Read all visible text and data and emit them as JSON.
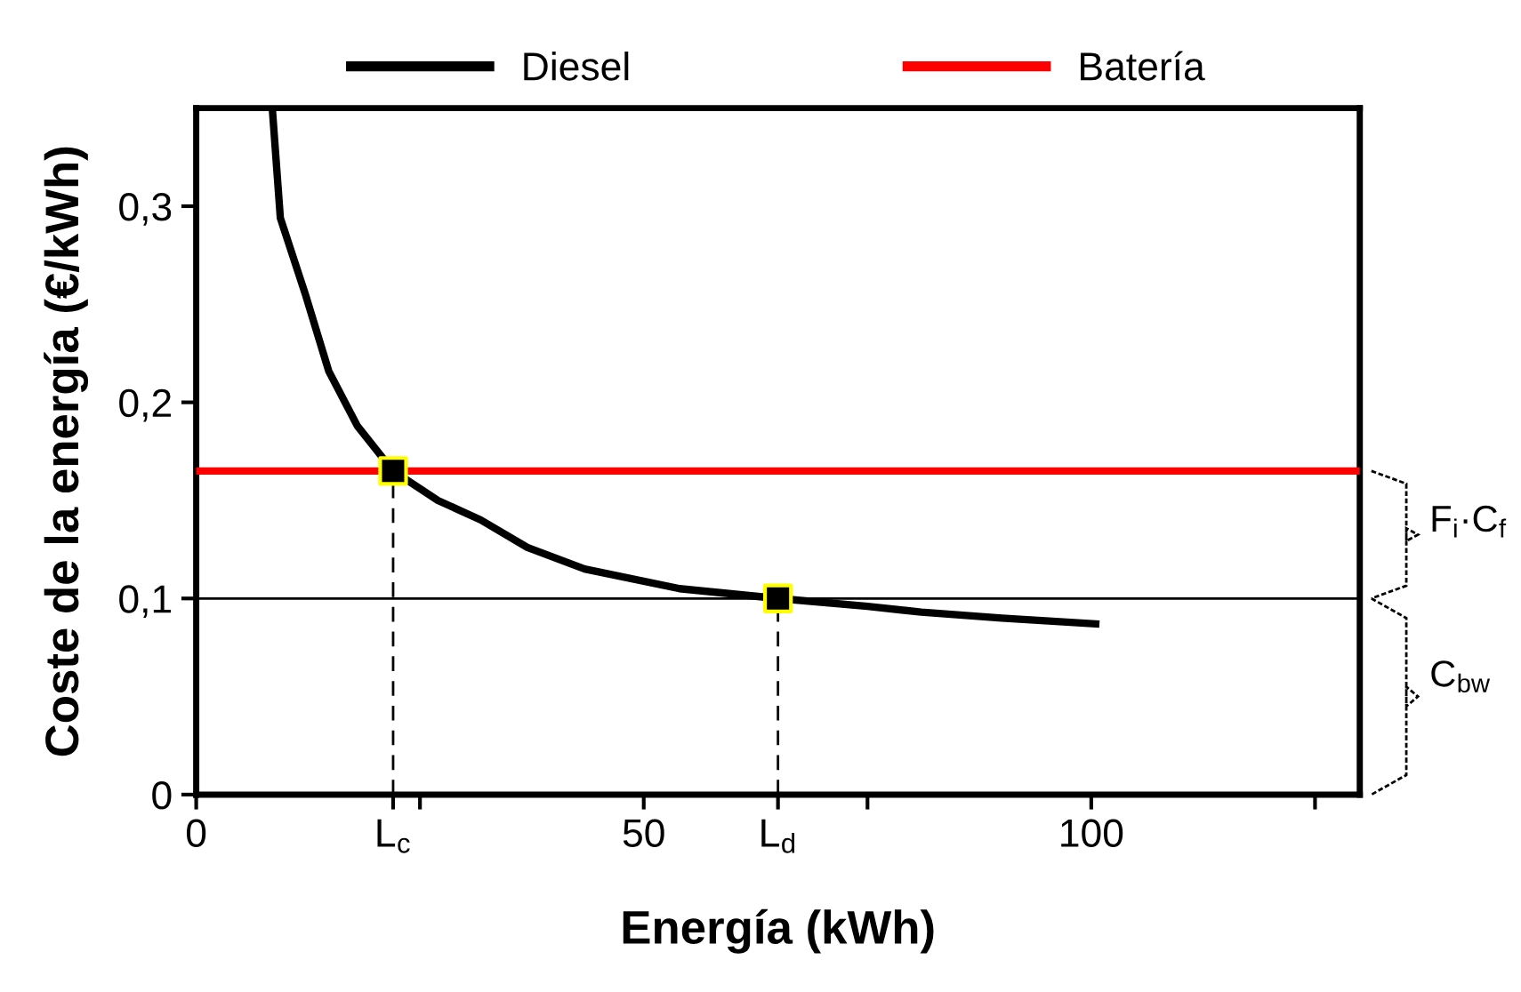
{
  "chart_data": {
    "type": "line",
    "xlabel": "Energía (kWh)",
    "ylabel": "Coste de la energía (€/kWh)",
    "xlim": [
      0,
      130
    ],
    "ylim": [
      0,
      0.35
    ],
    "xticks": [
      0,
      {
        "value": 22,
        "label": "L$_{c}$"
      },
      {
        "value": 25,
        "label": null
      },
      50,
      {
        "value": 65,
        "label": "L$_{d}$"
      },
      {
        "value": 75,
        "label": null
      },
      100,
      {
        "value": 125,
        "label": null
      }
    ],
    "yticks": [
      {
        "value": 0,
        "label": "0"
      },
      {
        "value": 0.1,
        "label": "0,1"
      },
      {
        "value": 0.2,
        "label": "0,2"
      },
      {
        "value": 0.3,
        "label": "0,3"
      }
    ],
    "grid": false,
    "legend": "top",
    "series": [
      {
        "name": "Diesel",
        "color": "#000000",
        "x": [
          8.5,
          9.4,
          12.2,
          14.8,
          18,
          22,
          27,
          31.8,
          37,
          43.4,
          54,
          65,
          75,
          81,
          90,
          100.5
        ],
        "values": [
          0.35,
          0.294,
          0.255,
          0.216,
          0.188,
          0.165,
          0.15,
          0.14,
          0.126,
          0.115,
          0.105,
          0.1,
          0.096,
          0.093,
          0.09,
          0.087
        ]
      },
      {
        "name": "Batería",
        "color": "#ff0000",
        "x": [
          0,
          130
        ],
        "values": [
          0.165,
          0.165
        ]
      },
      {
        "type": "line",
        "color": "#000000",
        "line_style": "dashed",
        "x": [
          22,
          22
        ],
        "values": [
          0,
          0.165
        ]
      },
      {
        "type": "line",
        "color": "#000000",
        "line_style": "dashed",
        "x": [
          65,
          65
        ],
        "values": [
          0,
          0.1
        ]
      },
      {
        "type": "scatter",
        "color": "#000000",
        "marker": "square",
        "x": [
          22,
          65
        ],
        "values": [
          0.165,
          0.1
        ]
      }
    ],
    "ref_lines": [
      {
        "axis": "y",
        "value": 0.1,
        "color": "#000000"
      }
    ],
    "annotations": [
      "F$_{i}$·C$_{f}$",
      "C$_{bw}$"
    ]
  }
}
